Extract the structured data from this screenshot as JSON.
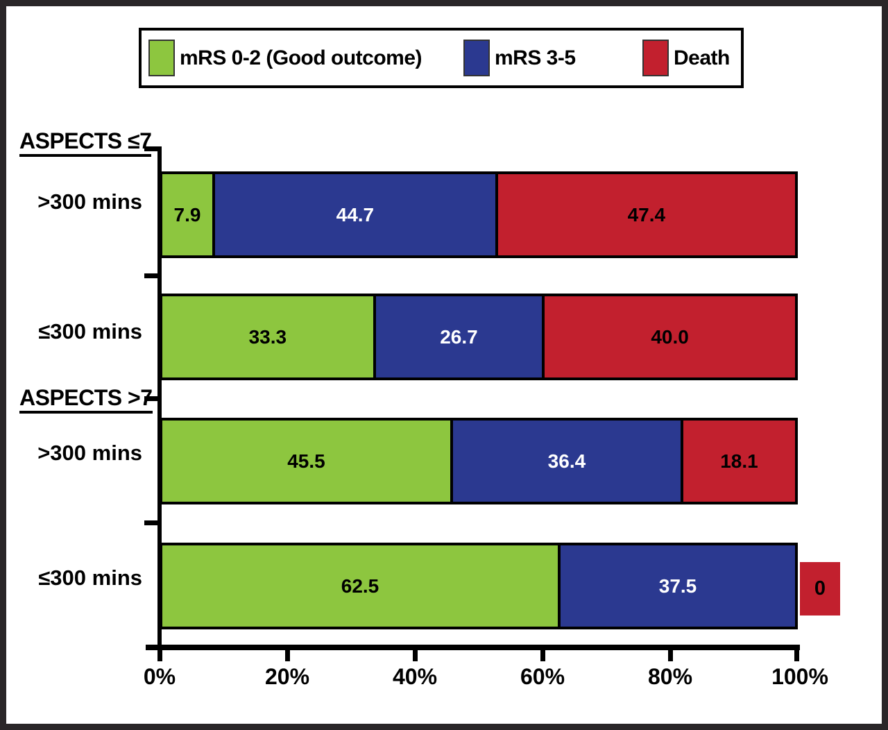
{
  "figure": {
    "background": "#ffffff",
    "frame_color": "#2a2628",
    "axis_color": "#000000"
  },
  "chart_data": {
    "type": "bar",
    "orientation": "horizontal",
    "stacked": true,
    "unit": "%",
    "xlim": [
      0,
      100
    ],
    "x_ticks": [
      "0%",
      "20%",
      "40%",
      "60%",
      "80%",
      "100%"
    ],
    "grid": false,
    "legend_position": "top",
    "legend": [
      {
        "label": "mRS 0-2 (Good outcome)",
        "color": "#8dc63f",
        "text_color": "#000000"
      },
      {
        "label": "mRS 3-5",
        "color": "#2b3990",
        "text_color": "#ffffff"
      },
      {
        "label": "Death",
        "color": "#c2202e",
        "text_color": "#000000"
      }
    ],
    "groups": [
      {
        "label": "ASPECTS ≤7",
        "rows": [
          {
            "label": ">300 mins",
            "values": [
              7.9,
              44.7,
              47.4
            ],
            "display": [
              "7.9",
              "44.7",
              "47.4"
            ]
          },
          {
            "label": "≤300 mins",
            "values": [
              33.3,
              26.7,
              40.0
            ],
            "display": [
              "33.3",
              "26.7",
              "40.0"
            ]
          }
        ]
      },
      {
        "label": "ASPECTS >7",
        "rows": [
          {
            "label": ">300 mins",
            "values": [
              45.5,
              36.4,
              18.1
            ],
            "display": [
              "45.5",
              "36.4",
              "18.1"
            ]
          },
          {
            "label": "≤300 mins",
            "values": [
              62.5,
              37.5,
              0
            ],
            "display": [
              "62.5",
              "37.5",
              "0"
            ]
          }
        ]
      }
    ]
  }
}
